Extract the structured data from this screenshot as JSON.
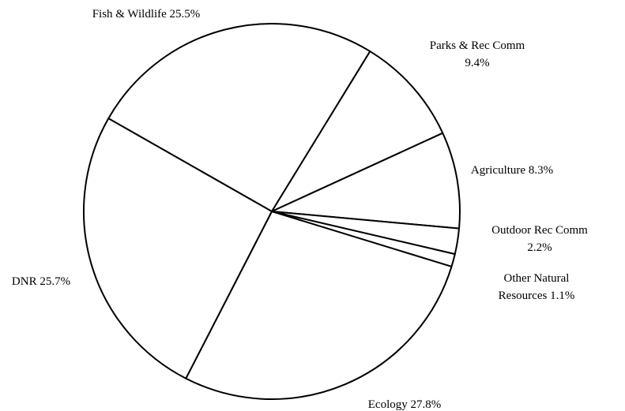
{
  "chart_data": {
    "type": "pie",
    "categories": [
      "Fish & Wildlife",
      "Parks & Rec Comm",
      "Agriculture",
      "Outdoor Rec Comm",
      "Other Natural Resources",
      "Ecology",
      "DNR"
    ],
    "values": [
      25.5,
      9.4,
      8.3,
      2.2,
      1.1,
      27.8,
      25.7
    ],
    "labels": [
      [
        "Fish & Wildlife 25.5%"
      ],
      [
        "Parks & Rec Comm",
        "9.4%"
      ],
      [
        "Agriculture 8.3%"
      ],
      [
        "Outdoor Rec Comm",
        "2.2%"
      ],
      [
        "Other Natural",
        "Resources 1.1%"
      ],
      [
        "Ecology 27.8%"
      ],
      [
        "DNR 25.7%"
      ]
    ],
    "legend": "none",
    "colors": {
      "fill": "#ffffff",
      "stroke": "#000000"
    }
  }
}
